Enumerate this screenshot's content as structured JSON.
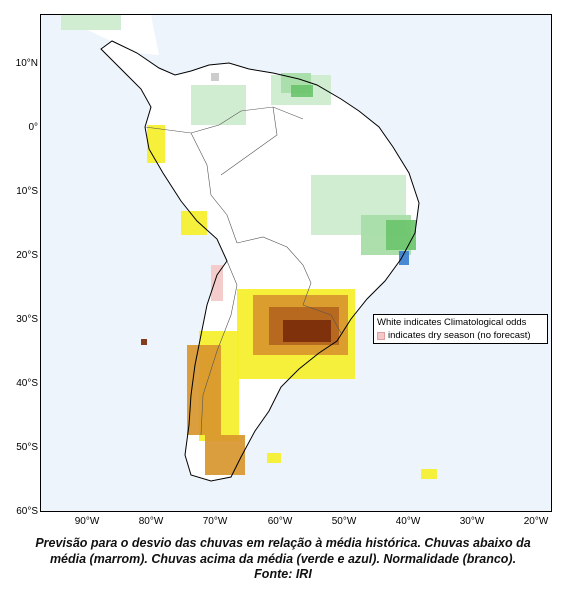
{
  "map": {
    "y_axis_labels": [
      "10°N",
      "0°",
      "10°S",
      "20°S",
      "30°S",
      "40°S",
      "50°S",
      "60°S"
    ],
    "x_axis_labels": [
      "90°W",
      "80°W",
      "70°W",
      "60°W",
      "50°W",
      "40°W",
      "30°W",
      "20°W"
    ],
    "legend": {
      "line1": "White indicates Climatological odds",
      "line2": "indicates dry season (no forecast)"
    },
    "colors": {
      "ocean": "#eef4fc",
      "land": "#ffffff",
      "coast": "#000000",
      "above_light": "#cdeccd",
      "above": "#a6dca6",
      "above_strong": "#6cc46c",
      "above_dark": "#3a9a3a",
      "wettest": "#3b7fd0",
      "normal_below_yellow": "#f5ef2a",
      "below": "#d8962e",
      "below_strong": "#b4651e",
      "below_dark": "#7a2c0a",
      "dry_season": "#f4c8c8",
      "no_data": "#c8c8c8"
    }
  },
  "caption": {
    "line1": "Previsão para o desvio das chuvas em relação à média histórica. Chuvas abaixo da",
    "line2": "média (marrom). Chuvas acima da média (verde e azul). Normalidade (branco).",
    "line3": "Fonte: IRI"
  }
}
